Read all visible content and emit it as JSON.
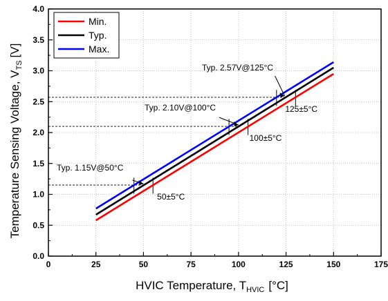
{
  "chart_data": {
    "type": "line",
    "xlabel": "HVIC Temperature, T",
    "xlabel_sub": "HVIC",
    "xlabel_unit": "[°C]",
    "ylabel": "Temperature Sensing Voltage, V",
    "ylabel_sub": "TS",
    "ylabel_unit": "[V]",
    "xlim": [
      0,
      175
    ],
    "ylim": [
      0.0,
      4.0
    ],
    "xticks": [
      "0",
      "25",
      "50",
      "75",
      "100",
      "125",
      "150",
      "175"
    ],
    "yticks": [
      "0.0",
      "0.5",
      "1.0",
      "1.5",
      "2.0",
      "2.5",
      "3.0",
      "3.5",
      "4.0"
    ],
    "grid": true,
    "legend_position": "top-left",
    "series": [
      {
        "name": "Min.",
        "color": "#ff0000",
        "x": [
          25,
          150
        ],
        "y": [
          0.58,
          2.95
        ]
      },
      {
        "name": "Typ.",
        "color": "#000000",
        "x": [
          25,
          150
        ],
        "y": [
          0.67,
          3.05
        ]
      },
      {
        "name": "Max.",
        "color": "#0000ff",
        "x": [
          25,
          150
        ],
        "y": [
          0.77,
          3.14
        ]
      }
    ],
    "annotations": [
      {
        "label": "Typ. 1.15V@50°C",
        "range_label": "50±5°C",
        "x": 50,
        "y": 1.15,
        "range": [
          45,
          55
        ]
      },
      {
        "label": "Typ. 2.10V@100°C",
        "range_label": "100±5°C",
        "x": 100,
        "y": 2.1,
        "range": [
          95,
          105
        ]
      },
      {
        "label": "Typ. 2.57V@125°C",
        "range_label": "125±5°C",
        "x": 125,
        "y": 2.57,
        "range": [
          120,
          130
        ]
      }
    ]
  }
}
